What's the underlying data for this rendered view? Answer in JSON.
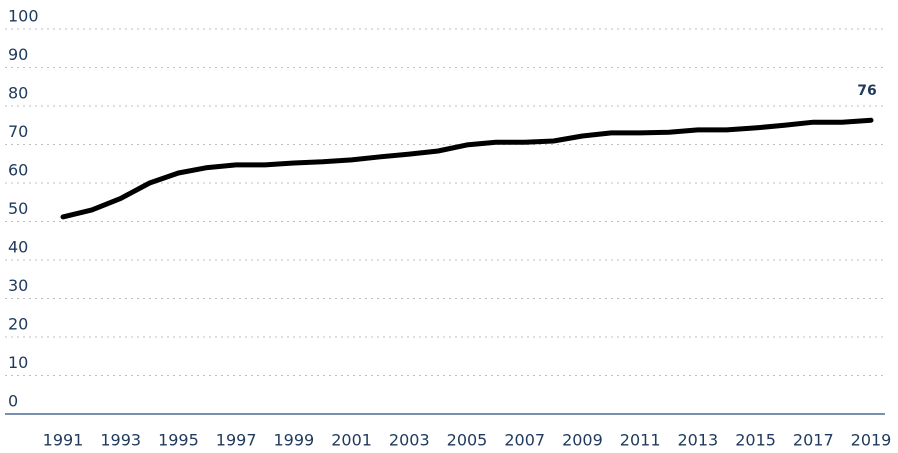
{
  "chart_data": {
    "type": "line",
    "x": [
      1991,
      1992,
      1993,
      1994,
      1995,
      1996,
      1997,
      1998,
      1999,
      2000,
      2001,
      2002,
      2003,
      2004,
      2005,
      2006,
      2007,
      2008,
      2009,
      2010,
      2011,
      2012,
      2013,
      2014,
      2015,
      2016,
      2017,
      2018,
      2019
    ],
    "values": [
      51.2,
      53,
      56,
      60,
      62.6,
      64,
      64.7,
      64.7,
      65.2,
      65.5,
      66,
      66.8,
      67.5,
      68.3,
      69.9,
      70.6,
      70.6,
      70.9,
      72.2,
      73,
      73,
      73.2,
      73.8,
      73.8,
      74.3,
      75,
      75.8,
      75.8,
      76.3
    ],
    "value_labels": [
      null,
      null,
      null,
      null,
      null,
      null,
      null,
      null,
      null,
      null,
      null,
      null,
      null,
      null,
      null,
      null,
      null,
      null,
      null,
      null,
      null,
      null,
      null,
      null,
      null,
      null,
      null,
      null,
      "76"
    ],
    "color": "#000000",
    "xlim": [
      1991,
      2019
    ],
    "xticks": [
      1991,
      1993,
      1995,
      1997,
      1999,
      2001,
      2003,
      2005,
      2007,
      2009,
      2011,
      2013,
      2015,
      2017,
      2019
    ],
    "ylim": [
      0,
      100
    ],
    "yticks": [
      0,
      10,
      20,
      30,
      40,
      50,
      60,
      70,
      80,
      90,
      100
    ],
    "grid": true
  }
}
